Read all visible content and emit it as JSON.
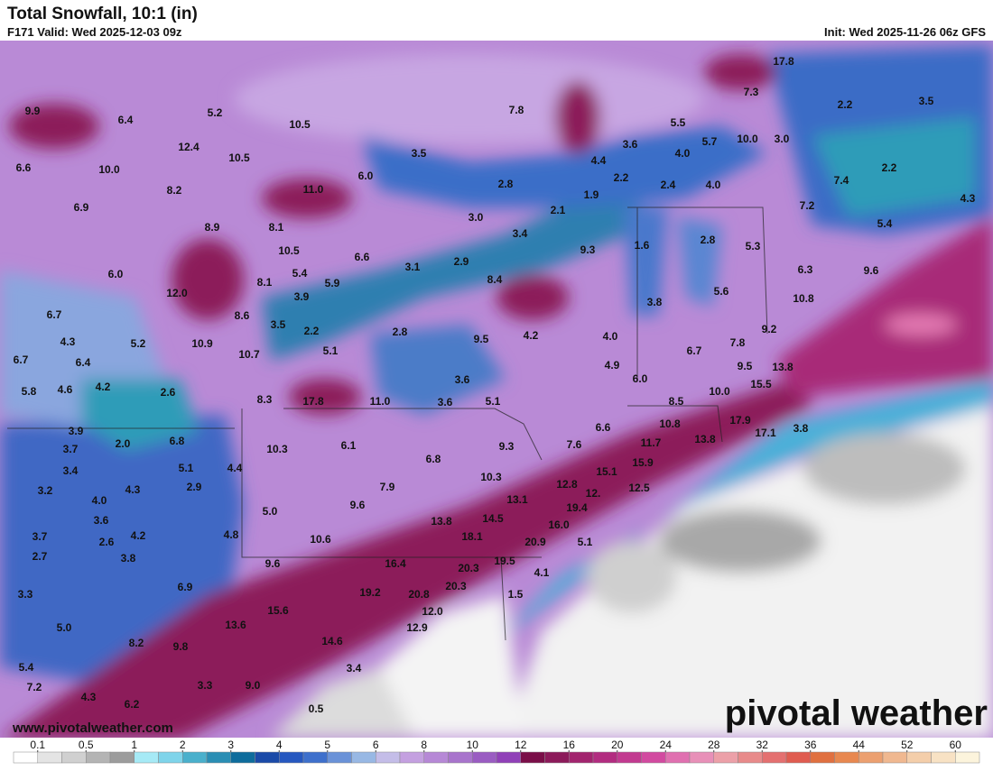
{
  "header": {
    "title": "Total Snowfall, 10:1 (in)",
    "valid": "F171 Valid: Wed 2025-12-03 09z",
    "init": "Init: Wed 2025-11-26 06z GFS"
  },
  "map": {
    "labels": [
      "9.9",
      "6.4",
      "5.2",
      "10.5",
      "7.8",
      "17.8",
      "7.3",
      "2.2",
      "3.5",
      "12.4",
      "10.5",
      "5.5",
      "3.6",
      "5.7",
      "10.0",
      "3.0",
      "4.0",
      "6.6",
      "10.0",
      "3.5",
      "4.4",
      "6.0",
      "2.2",
      "2.4",
      "4.0",
      "7.4",
      "2.2",
      "8.2",
      "11.0",
      "2.8",
      "1.9",
      "7.2",
      "4.3",
      "6.9",
      "2.1",
      "3.0",
      "8.9",
      "8.1",
      "3.4",
      "5.4",
      "9.3",
      "1.6",
      "2.8",
      "5.3",
      "10.5",
      "6.6",
      "3.1",
      "2.9",
      "6.0",
      "5.4",
      "8.4",
      "8.1",
      "5.9",
      "6.3",
      "9.6",
      "12.0",
      "3.9",
      "5.6",
      "10.8",
      "3.8",
      "6.7",
      "8.6",
      "3.5",
      "2.2",
      "2.8",
      "9.5",
      "4.2",
      "4.0",
      "9.2",
      "4.3",
      "5.2",
      "10.9",
      "5.1",
      "10.7",
      "6.7",
      "7.8",
      "6.7",
      "6.4",
      "4.9",
      "9.5",
      "13.8",
      "5.8",
      "4.6",
      "4.2",
      "2.6",
      "3.6",
      "6.0",
      "15.5",
      "8.3",
      "17.8",
      "11.0",
      "3.6",
      "5.1",
      "8.5",
      "10.0",
      "3.9",
      "6.6",
      "10.8",
      "17.9",
      "17.1",
      "3.8",
      "3.7",
      "2.0",
      "6.8",
      "10.3",
      "6.1",
      "9.3",
      "7.6",
      "11.7",
      "13.8",
      "3.4",
      "5.1",
      "4.4",
      "6.8",
      "15.1",
      "15.9",
      "10.3",
      "12.8",
      "12.5",
      "12.",
      "3.2",
      "4.3",
      "2.9",
      "7.9",
      "13.1",
      "4.0",
      "9.6",
      "19.4",
      "5.0",
      "14.5",
      "3.6",
      "13.8",
      "16.0",
      "4.2",
      "4.8",
      "3.7",
      "2.6",
      "10.6",
      "18.1",
      "20.9",
      "5.1",
      "2.7",
      "3.8",
      "9.6",
      "16.4",
      "19.5",
      "20.3",
      "4.1",
      "6.9",
      "20.3",
      "3.3",
      "19.2",
      "20.8",
      "1.5",
      "15.6",
      "12.0",
      "13.6",
      "5.0",
      "12.9",
      "8.2",
      "9.8",
      "14.6",
      "5.4",
      "3.4",
      "7.2",
      "3.3",
      "9.0",
      "4.3",
      "6.2",
      "0.5"
    ]
  },
  "watermark": {
    "url": "www.pivotalweather.com",
    "logo": "pivotal weather"
  },
  "legend": {
    "ticks": [
      0.1,
      0.5,
      1,
      2,
      3,
      4,
      5,
      6,
      8,
      10,
      12,
      16,
      20,
      24,
      28,
      32,
      36,
      44,
      52,
      60
    ],
    "colors": [
      "#ffffff",
      "#e4e4e4",
      "#d0d0d0",
      "#b4b4b4",
      "#9c9c9c",
      "#a6eaf6",
      "#7fd4ea",
      "#4ab0cc",
      "#2a8eb4",
      "#0e6c9c",
      "#1a4aa8",
      "#2658c0",
      "#3e70cc",
      "#6a92d8",
      "#98b8e4",
      "#c4bde8",
      "#c4a0e0",
      "#b688d6",
      "#a874cc",
      "#9a5cc2",
      "#9040b8",
      "#7a0e48",
      "#8c1a5a",
      "#a2246e",
      "#b22c80",
      "#c23a90",
      "#d24aa0",
      "#e070b0",
      "#e890b8",
      "#eca0a8",
      "#e88a8a",
      "#e47070",
      "#e05c50",
      "#e07040",
      "#e88850",
      "#eca070",
      "#f0b890",
      "#f4ceaa",
      "#f8e2c4",
      "#fcf4dc"
    ]
  }
}
